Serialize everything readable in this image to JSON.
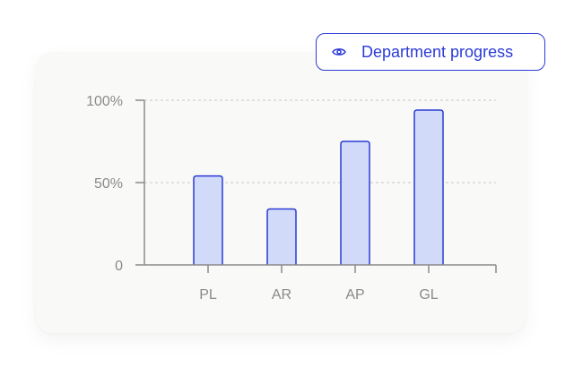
{
  "toggle": {
    "label": "Department progress",
    "icon": "eye-icon"
  },
  "colors": {
    "accent": "#2b3bd6",
    "bar_fill": "#d1daf9",
    "axis": "#8a8a8a",
    "grid": "#c8c8c8"
  },
  "chart_data": {
    "type": "bar",
    "categories": [
      "PL",
      "AR",
      "AP",
      "GL"
    ],
    "values": [
      54,
      34,
      75,
      94
    ],
    "ylim": [
      0,
      100
    ],
    "yticks": [
      {
        "value": 0,
        "label": "0"
      },
      {
        "value": 50,
        "label": "50%"
      },
      {
        "value": 100,
        "label": "100%"
      }
    ],
    "grid": true
  }
}
